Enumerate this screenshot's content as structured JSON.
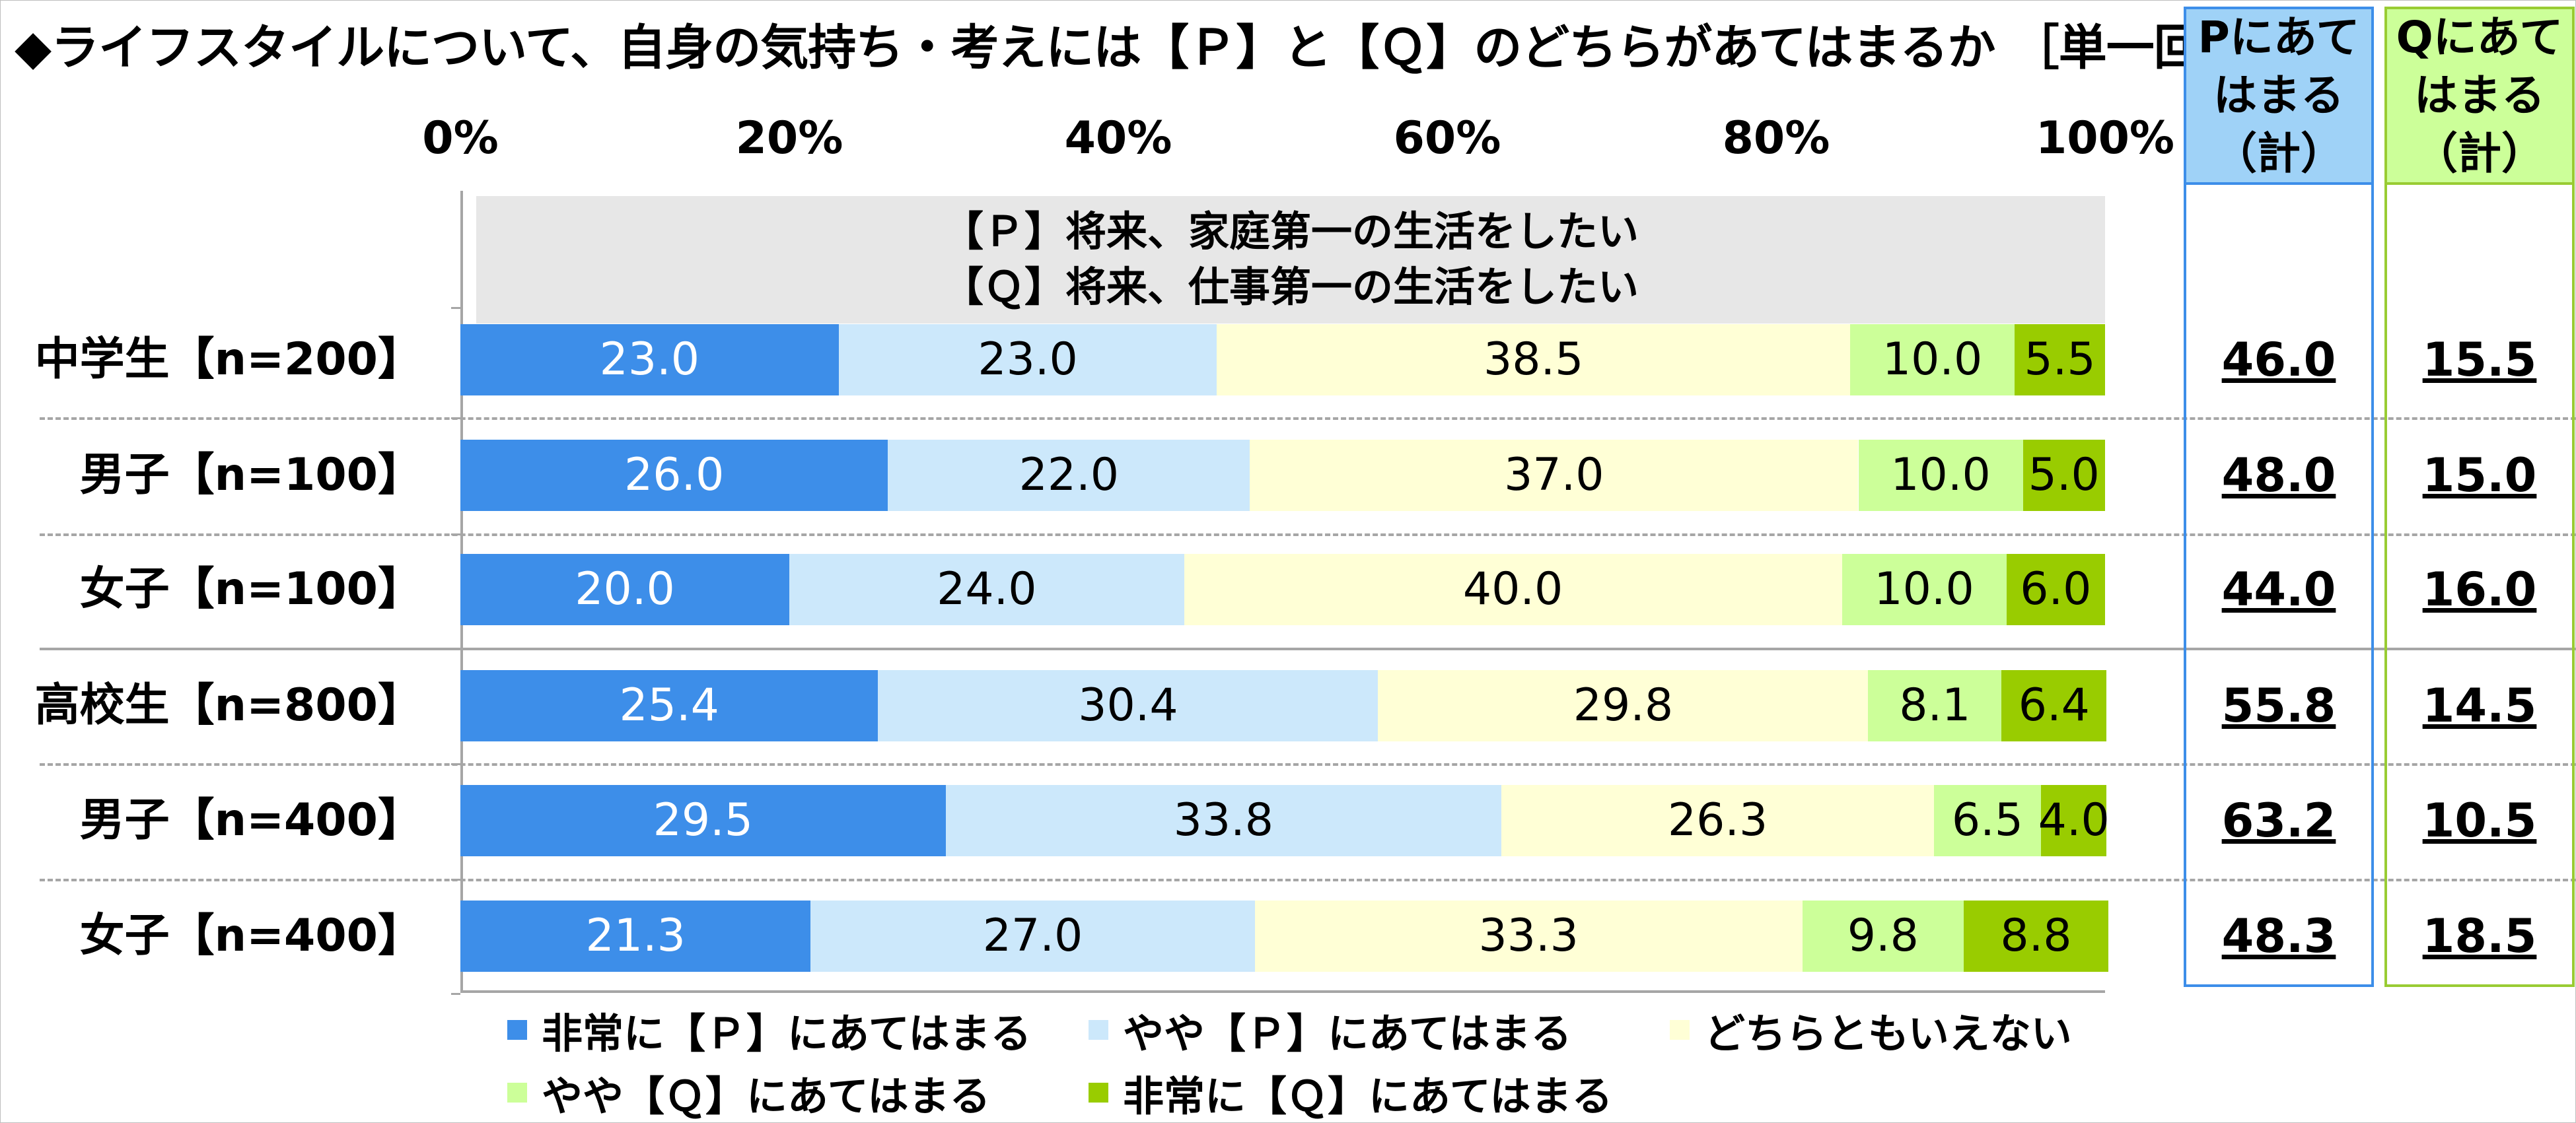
{
  "title": "◆ライフスタイルについて、自身の気持ち・考えには【Ｐ】と【Ｑ】のどちらがあてはまるか ［単一回答形式］",
  "colors": {
    "very_p": "#3d8ee9",
    "some_p": "#cce8fb",
    "neutral": "#ffffd6",
    "some_q": "#ccff99",
    "very_q": "#99cc00",
    "p_total_border": "#3d8ee9",
    "p_total_head": "#9fd2f7",
    "q_total_border": "#99cc33",
    "q_total_head": "#ccff99"
  },
  "question": {
    "p": "【Ｐ】将来、家庭第一の生活をしたい",
    "q": "【Ｑ】将来、仕事第一の生活をしたい"
  },
  "totals_header": {
    "p": [
      "Pにあて",
      "はまる",
      "（計）"
    ],
    "q": [
      "Qにあて",
      "はまる",
      "（計）"
    ]
  },
  "chart_data": {
    "type": "bar",
    "orientation": "horizontal-stacked-100",
    "xlim": [
      0,
      100
    ],
    "x_ticks": [
      "0%",
      "20%",
      "40%",
      "60%",
      "80%",
      "100%"
    ],
    "categories": [
      "中学生【n=200】",
      "男子【n=100】",
      "女子【n=100】",
      "高校生【n=800】",
      "男子【n=400】",
      "女子【n=400】"
    ],
    "series": [
      {
        "name": "非常に【Ｐ】にあてはまる",
        "values": [
          23.0,
          26.0,
          20.0,
          25.4,
          29.5,
          21.3
        ]
      },
      {
        "name": "やや【Ｐ】にあてはまる",
        "values": [
          23.0,
          22.0,
          24.0,
          30.4,
          33.8,
          27.0
        ]
      },
      {
        "name": "どちらともいえない",
        "values": [
          38.5,
          37.0,
          40.0,
          29.8,
          26.3,
          33.3
        ]
      },
      {
        "name": "やや【Ｑ】にあてはまる",
        "values": [
          10.0,
          10.0,
          10.0,
          8.1,
          6.5,
          9.8
        ]
      },
      {
        "name": "非常に【Ｑ】にあてはまる",
        "values": [
          5.5,
          5.0,
          6.0,
          6.4,
          4.0,
          8.8
        ]
      }
    ],
    "p_totals": [
      "46.0",
      "48.0",
      "44.0",
      "55.8",
      "63.2",
      "48.3"
    ],
    "q_totals": [
      "15.5",
      "15.0",
      "16.0",
      "14.5",
      "10.5",
      "18.5"
    ],
    "legend_position": "bottom"
  }
}
